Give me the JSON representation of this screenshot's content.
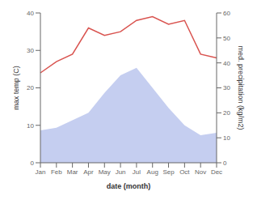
{
  "chart_data": {
    "type": "line",
    "categories": [
      "Jan",
      "Feb",
      "Mar",
      "Apr",
      "May",
      "Jun",
      "Jul",
      "Aug",
      "Sep",
      "Oct",
      "Nov",
      "Dec"
    ],
    "xlabel": "date (month)",
    "ylabel": "max temp (C)",
    "y2label": "med. precipitation (kg/m2)",
    "ylim": [
      0,
      40
    ],
    "yticks": [
      0,
      10,
      20,
      30,
      40
    ],
    "y2lim": [
      0,
      60
    ],
    "y2ticks": [
      0,
      10,
      20,
      30,
      40,
      50,
      60
    ],
    "series": [
      {
        "type": "area",
        "color": "#c5cef0",
        "axis": "y2",
        "values": [
          13,
          14,
          17,
          20,
          28,
          35,
          38,
          30,
          22,
          15,
          11,
          12
        ]
      },
      {
        "type": "line",
        "color": "#d9534f",
        "values": [
          24,
          27,
          29,
          36,
          34,
          35,
          38,
          39,
          37,
          38,
          29,
          28
        ]
      }
    ]
  }
}
